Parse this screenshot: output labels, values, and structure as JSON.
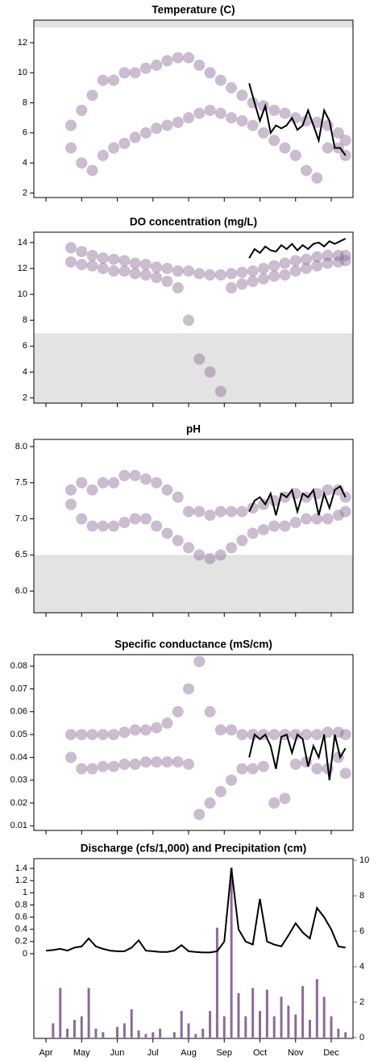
{
  "chart_data": [
    {
      "type": "scatter",
      "title": "Temperature (C)",
      "xlim": [
        -0.34,
        8.61
      ],
      "xticks": [
        0,
        1,
        2,
        3,
        4,
        5,
        6,
        7,
        8
      ],
      "ylim": [
        1.7,
        13.5
      ],
      "yticks": [
        2,
        4,
        6,
        8,
        10,
        12
      ],
      "shade": [
        13,
        13.5
      ],
      "shade_color": "#e3e3e3",
      "x": [
        0.7,
        1.0,
        1.3,
        1.6,
        1.9,
        2.2,
        2.5,
        2.8,
        3.1,
        3.4,
        3.7,
        4.0,
        4.3,
        4.6,
        4.9,
        5.2,
        5.5,
        5.8,
        6.1,
        6.4,
        6.7,
        7.0,
        7.3,
        7.6,
        7.9,
        8.2,
        8.4
      ],
      "series": [
        {
          "kind": "points",
          "color": "#8c6b96",
          "values": [
            6.5,
            7.5,
            8.5,
            9.5,
            9.5,
            10,
            10,
            10.3,
            10.5,
            10.8,
            11,
            11,
            10.5,
            10,
            9.5,
            9,
            8.5,
            8,
            7.8,
            7.5,
            7.3,
            7,
            6.8,
            6.7,
            6.5,
            6,
            5.5
          ]
        },
        {
          "kind": "points",
          "color": "#8c6b96",
          "values": [
            5,
            4,
            3.5,
            4.5,
            5,
            5.3,
            5.7,
            6,
            6.3,
            6.5,
            6.7,
            7,
            7.3,
            7.5,
            7.3,
            7,
            6.8,
            6.5,
            6,
            5.5,
            5,
            4.5,
            3.5,
            3,
            5,
            5,
            4.5
          ]
        },
        {
          "kind": "line",
          "color": "#000000",
          "x": [
            5.7,
            5.85,
            6.0,
            6.15,
            6.3,
            6.45,
            6.6,
            6.75,
            6.9,
            7.05,
            7.2,
            7.35,
            7.5,
            7.65,
            7.8,
            7.95,
            8.1,
            8.25,
            8.4
          ],
          "values": [
            9.3,
            8,
            6.8,
            7.8,
            6,
            6.5,
            6.3,
            6.5,
            7,
            6.2,
            6.5,
            7.5,
            6.5,
            5.5,
            7.5,
            6.8,
            5,
            5,
            4.5
          ]
        }
      ]
    },
    {
      "type": "scatter",
      "title": "DO concentration (mg/L)",
      "xlim": [
        -0.34,
        8.61
      ],
      "xticks": [
        0,
        1,
        2,
        3,
        4,
        5,
        6,
        7,
        8
      ],
      "ylim": [
        1.6,
        14.8
      ],
      "yticks": [
        2,
        4,
        6,
        8,
        10,
        12,
        14
      ],
      "shade": [
        1.6,
        7
      ],
      "shade_color": "#e3e3e3",
      "x": [
        0.7,
        1.0,
        1.3,
        1.6,
        1.9,
        2.2,
        2.5,
        2.8,
        3.1,
        3.4,
        3.7,
        4.0,
        4.3,
        4.6,
        4.9,
        5.2,
        5.5,
        5.8,
        6.1,
        6.4,
        6.7,
        7.0,
        7.3,
        7.6,
        7.9,
        8.2,
        8.4
      ],
      "series": [
        {
          "kind": "points",
          "color": "#8c6b96",
          "values": [
            13.6,
            13.3,
            13,
            12.8,
            12.7,
            12.6,
            12.4,
            12.3,
            12.1,
            12,
            11.8,
            11.8,
            11.6,
            11.5,
            11.5,
            11.6,
            11.7,
            11.8,
            12,
            12.2,
            12.4,
            12.6,
            12.7,
            12.9,
            13,
            13,
            13
          ]
        },
        {
          "kind": "points",
          "color": "#8c6b96",
          "values": [
            12.5,
            12.3,
            12.2,
            12,
            11.8,
            11.8,
            11.6,
            11.5,
            11.3,
            11,
            10.5,
            8,
            5,
            4,
            2.5,
            10.5,
            10.8,
            11,
            11.2,
            11.4,
            11.5,
            11.8,
            12,
            12.2,
            12.4,
            12.5,
            12.6
          ]
        },
        {
          "kind": "line",
          "color": "#000000",
          "x": [
            5.7,
            5.85,
            6.0,
            6.15,
            6.3,
            6.45,
            6.6,
            6.75,
            6.9,
            7.05,
            7.2,
            7.35,
            7.5,
            7.65,
            7.8,
            7.95,
            8.1,
            8.25,
            8.4
          ],
          "values": [
            12.8,
            13.5,
            13.2,
            13.7,
            13.4,
            13.3,
            13.8,
            13.5,
            13.9,
            13.4,
            13.8,
            13.5,
            13.9,
            14,
            13.7,
            14.1,
            13.9,
            14.1,
            14.3
          ]
        }
      ]
    },
    {
      "type": "scatter",
      "title": "pH",
      "xlim": [
        -0.34,
        8.61
      ],
      "xticks": [
        0,
        1,
        2,
        3,
        4,
        5,
        6,
        7,
        8
      ],
      "ylim": [
        5.7,
        8.1
      ],
      "yticks": [
        {
          "value": 6,
          "label": "6.0"
        },
        6.5,
        {
          "value": 7,
          "label": "7.0"
        },
        7.5,
        {
          "value": 8,
          "label": "8.0"
        }
      ],
      "shade": [
        5.7,
        6.5
      ],
      "shade_color": "#e3e3e3",
      "x": [
        0.7,
        1.0,
        1.3,
        1.6,
        1.9,
        2.2,
        2.5,
        2.8,
        3.1,
        3.4,
        3.7,
        4.0,
        4.3,
        4.6,
        4.9,
        5.2,
        5.5,
        5.8,
        6.1,
        6.4,
        6.7,
        7.0,
        7.3,
        7.6,
        7.9,
        8.2,
        8.4
      ],
      "series": [
        {
          "kind": "points",
          "color": "#8c6b96",
          "values": [
            7.4,
            7.5,
            7.4,
            7.5,
            7.5,
            7.6,
            7.6,
            7.55,
            7.5,
            7.4,
            7.3,
            7.1,
            7.1,
            7.05,
            7.1,
            7.1,
            7.1,
            7.15,
            7.2,
            7.25,
            7.3,
            7.35,
            7.3,
            7.35,
            7.4,
            7.4,
            7.3
          ]
        },
        {
          "kind": "points",
          "color": "#8c6b96",
          "values": [
            7.2,
            7,
            6.9,
            6.9,
            6.9,
            6.95,
            7.0,
            7.0,
            6.9,
            6.8,
            6.7,
            6.6,
            6.5,
            6.45,
            6.5,
            6.6,
            6.7,
            6.8,
            6.85,
            6.9,
            6.9,
            6.95,
            7.0,
            7.0,
            7.0,
            7.05,
            7.1
          ]
        },
        {
          "kind": "line",
          "color": "#000000",
          "x": [
            5.7,
            5.85,
            6.0,
            6.15,
            6.3,
            6.45,
            6.6,
            6.75,
            6.9,
            7.05,
            7.2,
            7.35,
            7.5,
            7.65,
            7.8,
            7.95,
            8.1,
            8.25,
            8.4
          ],
          "values": [
            7.1,
            7.25,
            7.3,
            7.2,
            7.35,
            7.05,
            7.35,
            7.3,
            7.4,
            7.1,
            7.35,
            7.3,
            7.4,
            7.05,
            7.35,
            7.15,
            7.4,
            7.45,
            7.3
          ]
        }
      ]
    },
    {
      "type": "scatter",
      "title": "Specific conductance (mS/cm)",
      "xlim": [
        -0.34,
        8.61
      ],
      "xticks": [
        0,
        1,
        2,
        3,
        4,
        5,
        6,
        7,
        8
      ],
      "ylim": [
        0.008,
        0.085
      ],
      "yticks": [
        0.01,
        0.02,
        0.03,
        0.04,
        0.05,
        0.06,
        0.07,
        0.08
      ],
      "x": [
        0.7,
        1.0,
        1.3,
        1.6,
        1.9,
        2.2,
        2.5,
        2.8,
        3.1,
        3.4,
        3.7,
        4.0,
        4.3,
        4.6,
        4.9,
        5.2,
        5.5,
        5.8,
        6.1,
        6.4,
        6.7,
        7.0,
        7.3,
        7.6,
        7.9,
        8.2,
        8.4
      ],
      "series": [
        {
          "kind": "points",
          "color": "#8c6b96",
          "values": [
            0.05,
            0.05,
            0.05,
            0.05,
            0.05,
            0.051,
            0.052,
            0.052,
            0.053,
            0.055,
            0.06,
            0.07,
            0.082,
            0.06,
            0.052,
            0.052,
            0.05,
            0.05,
            0.05,
            0.05,
            0.05,
            0.05,
            0.05,
            0.05,
            0.051,
            0.051,
            0.05
          ]
        },
        {
          "kind": "points",
          "color": "#8c6b96",
          "values": [
            0.04,
            0.035,
            0.035,
            0.036,
            0.036,
            0.037,
            0.037,
            0.038,
            0.038,
            0.038,
            0.038,
            0.037,
            0.015,
            0.02,
            0.025,
            0.03,
            0.035,
            0.035,
            0.036,
            0.02,
            0.022,
            0.037,
            0.038,
            0.035,
            0.035,
            0.04,
            0.033
          ]
        },
        {
          "kind": "line",
          "color": "#000000",
          "x": [
            5.7,
            5.85,
            6.0,
            6.15,
            6.3,
            6.45,
            6.6,
            6.75,
            6.9,
            7.05,
            7.2,
            7.35,
            7.5,
            7.65,
            7.8,
            7.95,
            8.1,
            8.25,
            8.4
          ],
          "values": [
            0.04,
            0.05,
            0.048,
            0.05,
            0.045,
            0.035,
            0.049,
            0.05,
            0.042,
            0.05,
            0.048,
            0.036,
            0.045,
            0.04,
            0.05,
            0.03,
            0.05,
            0.04,
            0.044
          ]
        }
      ]
    },
    {
      "type": "combo",
      "title": "Discharge (cfs/1,000) and Precipitation (cm)",
      "xlim": [
        -0.34,
        8.61
      ],
      "xticks": [
        {
          "value": 0,
          "label": "Apr"
        },
        {
          "value": 1,
          "label": "May"
        },
        {
          "value": 2,
          "label": "Jun"
        },
        {
          "value": 3,
          "label": "Jul"
        },
        {
          "value": 4,
          "label": "Aug"
        },
        {
          "value": 5,
          "label": "Sep"
        },
        {
          "value": 6,
          "label": "Oct"
        },
        {
          "value": 7,
          "label": "Nov"
        },
        {
          "value": 8,
          "label": "Dec"
        }
      ],
      "ylim": [
        -1.39,
        1.56
      ],
      "yticks": [
        0,
        0.2,
        0.4,
        0.6,
        0.8,
        1,
        1.2,
        1.4
      ],
      "y2lim": [
        -0.05,
        10.1
      ],
      "y2ticks": [
        0,
        2,
        4,
        6,
        8,
        10
      ],
      "y2_color": "#8c6b96",
      "x": [
        0,
        0.2,
        0.4,
        0.6,
        0.8,
        1.0,
        1.2,
        1.4,
        1.6,
        1.8,
        2.0,
        2.2,
        2.4,
        2.6,
        2.8,
        3.0,
        3.2,
        3.4,
        3.6,
        3.8,
        4.0,
        4.2,
        4.4,
        4.6,
        4.8,
        5.0,
        5.2,
        5.4,
        5.6,
        5.8,
        6.0,
        6.2,
        6.4,
        6.6,
        6.8,
        7.0,
        7.2,
        7.4,
        7.6,
        7.8,
        8.0,
        8.2,
        8.4
      ],
      "series": [
        {
          "kind": "bar",
          "axis": "y2",
          "color": "#8c6b96",
          "values": [
            0.0,
            0.8,
            2.8,
            0.5,
            1.0,
            1.2,
            2.8,
            0.5,
            0.3,
            0.0,
            0.6,
            0.8,
            1.6,
            0.4,
            0.2,
            0.3,
            0.5,
            0.0,
            0.3,
            1.5,
            0.8,
            0.2,
            0.5,
            1.5,
            6.2,
            1.2,
            9.6,
            2.5,
            1.2,
            2.8,
            1.5,
            2.7,
            1.2,
            2.3,
            1.8,
            1.3,
            2.9,
            1.0,
            3.3,
            2.3,
            1.2,
            0.5,
            0.3
          ]
        },
        {
          "kind": "line",
          "color": "#000000",
          "values": [
            0.05,
            0.06,
            0.08,
            0.05,
            0.1,
            0.12,
            0.25,
            0.12,
            0.08,
            0.05,
            0.04,
            0.04,
            0.1,
            0.22,
            0.05,
            0.04,
            0.03,
            0.03,
            0.05,
            0.14,
            0.04,
            0.03,
            0.02,
            0.02,
            0.04,
            0.2,
            1.4,
            0.4,
            0.2,
            0.15,
            0.9,
            0.2,
            0.15,
            0.12,
            0.3,
            0.5,
            0.35,
            0.25,
            0.75,
            0.6,
            0.4,
            0.12,
            0.1
          ]
        }
      ]
    }
  ]
}
